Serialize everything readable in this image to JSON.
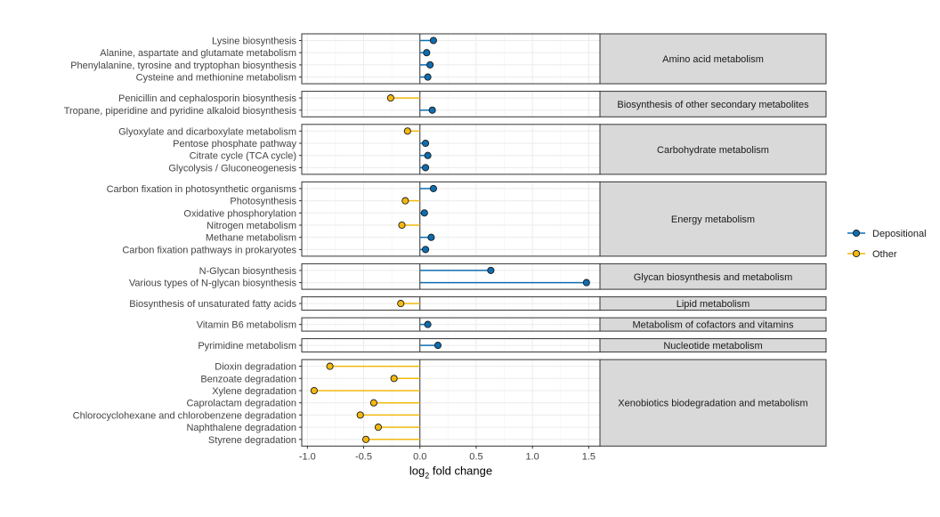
{
  "chart_data": {
    "type": "lollipop",
    "xlabel_main": "log",
    "xlabel_sub": "2",
    "xlabel_rest": " fold change",
    "xlim": [
      -1.05,
      1.6
    ],
    "xticks": [
      -1.0,
      -0.5,
      0.0,
      0.5,
      1.0,
      1.5
    ],
    "xtick_labels": [
      "-1.0",
      "-0.5",
      "0.0",
      "0.5",
      "1.0",
      "1.5"
    ],
    "colors": {
      "Depositional": "#0E6DB0",
      "Other": "#F2B90F"
    },
    "legend": [
      {
        "name": "Depositional",
        "color": "#0E6DB0"
      },
      {
        "name": "Other",
        "color": "#F2B90F"
      }
    ],
    "groups": [
      {
        "name": "Amino acid metabolism",
        "items": [
          {
            "label": "Lysine biosynthesis",
            "value": 0.12,
            "group": "Depositional"
          },
          {
            "label": "Alanine, aspartate and glutamate metabolism",
            "value": 0.06,
            "group": "Depositional"
          },
          {
            "label": "Phenylalanine, tyrosine and tryptophan biosynthesis",
            "value": 0.09,
            "group": "Depositional"
          },
          {
            "label": "Cysteine and methionine metabolism",
            "value": 0.07,
            "group": "Depositional"
          }
        ]
      },
      {
        "name": "Biosynthesis of other secondary metabolites",
        "items": [
          {
            "label": "Penicillin and cephalosporin biosynthesis",
            "value": -0.26,
            "group": "Other"
          },
          {
            "label": "Tropane, piperidine and pyridine alkaloid biosynthesis",
            "value": 0.11,
            "group": "Depositional"
          }
        ]
      },
      {
        "name": "Carbohydrate metabolism",
        "items": [
          {
            "label": "Glyoxylate and dicarboxylate metabolism",
            "value": -0.11,
            "group": "Other"
          },
          {
            "label": "Pentose phosphate pathway",
            "value": 0.05,
            "group": "Depositional"
          },
          {
            "label": "Citrate cycle (TCA cycle)",
            "value": 0.07,
            "group": "Depositional"
          },
          {
            "label": "Glycolysis / Gluconeogenesis",
            "value": 0.05,
            "group": "Depositional"
          }
        ]
      },
      {
        "name": "Energy metabolism",
        "items": [
          {
            "label": "Carbon fixation in photosynthetic organisms",
            "value": 0.12,
            "group": "Depositional"
          },
          {
            "label": "Photosynthesis",
            "value": -0.13,
            "group": "Other"
          },
          {
            "label": "Oxidative phosphorylation",
            "value": 0.04,
            "group": "Depositional"
          },
          {
            "label": "Nitrogen metabolism",
            "value": -0.16,
            "group": "Other"
          },
          {
            "label": "Methane metabolism",
            "value": 0.1,
            "group": "Depositional"
          },
          {
            "label": "Carbon fixation pathways in prokaryotes",
            "value": 0.05,
            "group": "Depositional"
          }
        ]
      },
      {
        "name": "Glycan biosynthesis and metabolism",
        "items": [
          {
            "label": "N-Glycan biosynthesis",
            "value": 0.63,
            "group": "Depositional"
          },
          {
            "label": "Various types of N-glycan biosynthesis",
            "value": 1.48,
            "group": "Depositional"
          }
        ]
      },
      {
        "name": "Lipid metabolism",
        "items": [
          {
            "label": "Biosynthesis of unsaturated fatty acids",
            "value": -0.17,
            "group": "Other"
          }
        ]
      },
      {
        "name": "Metabolism of cofactors and vitamins",
        "items": [
          {
            "label": "Vitamin B6 metabolism",
            "value": 0.07,
            "group": "Depositional"
          }
        ]
      },
      {
        "name": "Nucleotide metabolism",
        "items": [
          {
            "label": "Pyrimidine metabolism",
            "value": 0.16,
            "group": "Depositional"
          }
        ]
      },
      {
        "name": "Xenobiotics biodegradation and metabolism",
        "items": [
          {
            "label": "Dioxin degradation",
            "value": -0.8,
            "group": "Other"
          },
          {
            "label": "Benzoate degradation",
            "value": -0.23,
            "group": "Other"
          },
          {
            "label": "Xylene degradation",
            "value": -0.94,
            "group": "Other"
          },
          {
            "label": "Caprolactam degradation",
            "value": -0.41,
            "group": "Other"
          },
          {
            "label": "Chlorocyclohexane and chlorobenzene degradation",
            "value": -0.53,
            "group": "Other"
          },
          {
            "label": "Naphthalene degradation",
            "value": -0.37,
            "group": "Other"
          },
          {
            "label": "Styrene degradation",
            "value": -0.48,
            "group": "Other"
          }
        ]
      }
    ]
  }
}
